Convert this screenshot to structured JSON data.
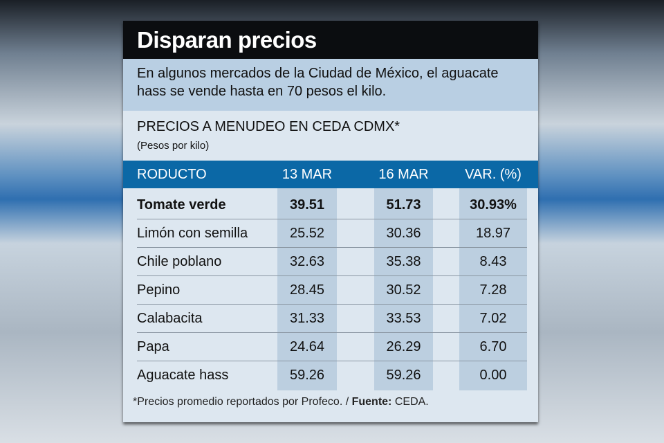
{
  "title": "Disparan precios",
  "subtitle": "En algunos mercados de la Ciudad de México, el aguacate hass se vende hasta en 70 pesos el kilo.",
  "section_title": "PRECIOS A MENUDEO EN CEDA CDMX*",
  "units": "(Pesos por kilo)",
  "headers": [
    "RODUCTO",
    "13 MAR",
    "16 MAR",
    "VAR. (%)"
  ],
  "rows": [
    [
      "Tomate verde",
      "39.51",
      "51.73",
      "30.93%"
    ],
    [
      "Limón con semilla",
      "25.52",
      "30.36",
      "18.97"
    ],
    [
      "Chile poblano",
      "32.63",
      "35.38",
      "8.43"
    ],
    [
      "Pepino",
      "28.45",
      "30.52",
      "7.28"
    ],
    [
      "Calabacita",
      "31.33",
      "33.53",
      "7.02"
    ],
    [
      "Papa",
      "24.64",
      "26.29",
      "6.70"
    ],
    [
      "Aguacate hass",
      "59.26",
      "59.26",
      "0.00"
    ]
  ],
  "footnote": {
    "note": "*Precios promedio reportados por Profeco. / ",
    "source_label": "Fuente:",
    "source": " CEDA."
  }
}
